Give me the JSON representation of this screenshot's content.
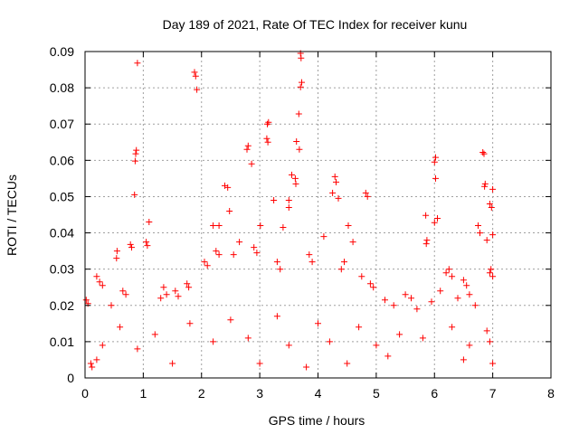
{
  "chart_data": {
    "type": "scatter",
    "title": "Day 189 of 2021, Rate Of TEC Index for receiver kunu",
    "xlabel": "GPS time / hours",
    "ylabel": "ROTI / TECUs",
    "xlim": [
      0,
      8
    ],
    "ylim": [
      0,
      0.09
    ],
    "x_ticks": [
      "0",
      "1",
      "2",
      "3",
      "4",
      "5",
      "6",
      "7"
    ],
    "x_ticks_full": [
      "0",
      "1",
      "2",
      "3",
      "4",
      "5",
      "6",
      "7",
      "8"
    ],
    "y_ticks": [
      "0",
      "0.01",
      "0.02",
      "0.03",
      "0.04",
      "0.05",
      "0.06",
      "0.07",
      "0.08",
      "0.09"
    ],
    "grid": true,
    "marker": "+",
    "color": "#ff0000",
    "series": [
      {
        "points": [
          [
            0.9,
            0.0868
          ],
          [
            1.88,
            0.0843
          ],
          [
            1.9,
            0.0832
          ],
          [
            1.92,
            0.0795
          ],
          [
            3.7,
            0.0895
          ],
          [
            3.71,
            0.0882
          ],
          [
            3.72,
            0.0815
          ],
          [
            3.7,
            0.0802
          ],
          [
            3.67,
            0.0728
          ],
          [
            3.15,
            0.0705
          ],
          [
            3.13,
            0.07
          ],
          [
            3.12,
            0.066
          ],
          [
            3.14,
            0.065
          ],
          [
            3.63,
            0.0652
          ],
          [
            3.68,
            0.063
          ],
          [
            2.8,
            0.064
          ],
          [
            2.78,
            0.063
          ],
          [
            2.86,
            0.059
          ],
          [
            0.88,
            0.0628
          ],
          [
            0.87,
            0.0618
          ],
          [
            0.86,
            0.0598
          ],
          [
            6.83,
            0.0622
          ],
          [
            6.85,
            0.0618
          ],
          [
            6.02,
            0.0608
          ],
          [
            6.0,
            0.0595
          ],
          [
            3.55,
            0.056
          ],
          [
            3.61,
            0.055
          ],
          [
            3.62,
            0.0535
          ],
          [
            6.87,
            0.0535
          ],
          [
            6.86,
            0.0528
          ],
          [
            4.29,
            0.0555
          ],
          [
            4.31,
            0.054
          ],
          [
            6.02,
            0.055
          ],
          [
            4.82,
            0.051
          ],
          [
            4.85,
            0.05
          ],
          [
            7.0,
            0.052
          ],
          [
            2.4,
            0.053
          ],
          [
            2.45,
            0.0525
          ],
          [
            0.85,
            0.0505
          ],
          [
            4.25,
            0.051
          ],
          [
            4.35,
            0.0495
          ],
          [
            3.24,
            0.049
          ],
          [
            6.95,
            0.048
          ],
          [
            6.98,
            0.047
          ],
          [
            2.48,
            0.046
          ],
          [
            3.5,
            0.049
          ],
          [
            3.5,
            0.047
          ],
          [
            5.85,
            0.0448
          ],
          [
            6.05,
            0.044
          ],
          [
            6.0,
            0.0428
          ],
          [
            1.1,
            0.043
          ],
          [
            2.2,
            0.042
          ],
          [
            2.3,
            0.042
          ],
          [
            3.01,
            0.042
          ],
          [
            4.52,
            0.042
          ],
          [
            6.75,
            0.042
          ],
          [
            6.78,
            0.04
          ],
          [
            3.4,
            0.0415
          ],
          [
            0.55,
            0.035
          ],
          [
            0.54,
            0.033
          ],
          [
            0.78,
            0.0368
          ],
          [
            0.8,
            0.036
          ],
          [
            1.05,
            0.0375
          ],
          [
            1.07,
            0.0365
          ],
          [
            5.87,
            0.038
          ],
          [
            5.86,
            0.037
          ],
          [
            7.0,
            0.0395
          ],
          [
            6.9,
            0.038
          ],
          [
            4.1,
            0.039
          ],
          [
            4.6,
            0.0375
          ],
          [
            2.65,
            0.0375
          ],
          [
            2.55,
            0.034
          ],
          [
            1.3,
            0.022
          ],
          [
            0.2,
            0.028
          ],
          [
            0.25,
            0.0265
          ],
          [
            0.3,
            0.0255
          ],
          [
            0.05,
            0.0205
          ],
          [
            0.02,
            0.0215
          ],
          [
            1.55,
            0.024
          ],
          [
            1.6,
            0.0225
          ],
          [
            1.75,
            0.026
          ],
          [
            1.78,
            0.025
          ],
          [
            5.5,
            0.023
          ],
          [
            5.6,
            0.022
          ],
          [
            6.2,
            0.029
          ],
          [
            6.25,
            0.03
          ],
          [
            6.3,
            0.028
          ],
          [
            6.5,
            0.027
          ],
          [
            6.55,
            0.0255
          ],
          [
            6.97,
            0.03
          ],
          [
            6.95,
            0.029
          ],
          [
            7.0,
            0.028
          ],
          [
            5.3,
            0.02
          ],
          [
            5.15,
            0.0215
          ],
          [
            4.9,
            0.026
          ],
          [
            4.95,
            0.025
          ],
          [
            4.75,
            0.028
          ],
          [
            4.45,
            0.032
          ],
          [
            4.4,
            0.03
          ],
          [
            3.85,
            0.034
          ],
          [
            3.9,
            0.032
          ],
          [
            3.3,
            0.032
          ],
          [
            3.35,
            0.03
          ],
          [
            2.05,
            0.032
          ],
          [
            2.1,
            0.031
          ],
          [
            2.25,
            0.035
          ],
          [
            2.3,
            0.034
          ],
          [
            2.9,
            0.036
          ],
          [
            2.95,
            0.0345
          ],
          [
            1.35,
            0.025
          ],
          [
            1.4,
            0.023
          ],
          [
            0.65,
            0.024
          ],
          [
            0.7,
            0.023
          ],
          [
            0.45,
            0.02
          ],
          [
            5.7,
            0.019
          ],
          [
            5.95,
            0.021
          ],
          [
            6.1,
            0.024
          ],
          [
            6.4,
            0.022
          ],
          [
            6.6,
            0.023
          ],
          [
            6.7,
            0.02
          ],
          [
            0.1,
            0.004
          ],
          [
            0.12,
            0.003
          ],
          [
            0.2,
            0.005
          ],
          [
            1.5,
            0.004
          ],
          [
            3.0,
            0.004
          ],
          [
            3.8,
            0.003
          ],
          [
            4.5,
            0.004
          ],
          [
            5.2,
            0.006
          ],
          [
            6.5,
            0.005
          ],
          [
            7.0,
            0.004
          ],
          [
            0.6,
            0.014
          ],
          [
            1.2,
            0.012
          ],
          [
            1.8,
            0.015
          ],
          [
            2.5,
            0.016
          ],
          [
            3.3,
            0.017
          ],
          [
            4.0,
            0.015
          ],
          [
            4.7,
            0.014
          ],
          [
            5.4,
            0.012
          ],
          [
            6.3,
            0.014
          ],
          [
            6.9,
            0.013
          ],
          [
            0.3,
            0.009
          ],
          [
            0.9,
            0.008
          ],
          [
            2.2,
            0.01
          ],
          [
            2.8,
            0.011
          ],
          [
            3.5,
            0.009
          ],
          [
            4.2,
            0.01
          ],
          [
            5.0,
            0.009
          ],
          [
            5.8,
            0.011
          ],
          [
            6.6,
            0.009
          ],
          [
            6.95,
            0.01
          ]
        ]
      }
    ]
  }
}
